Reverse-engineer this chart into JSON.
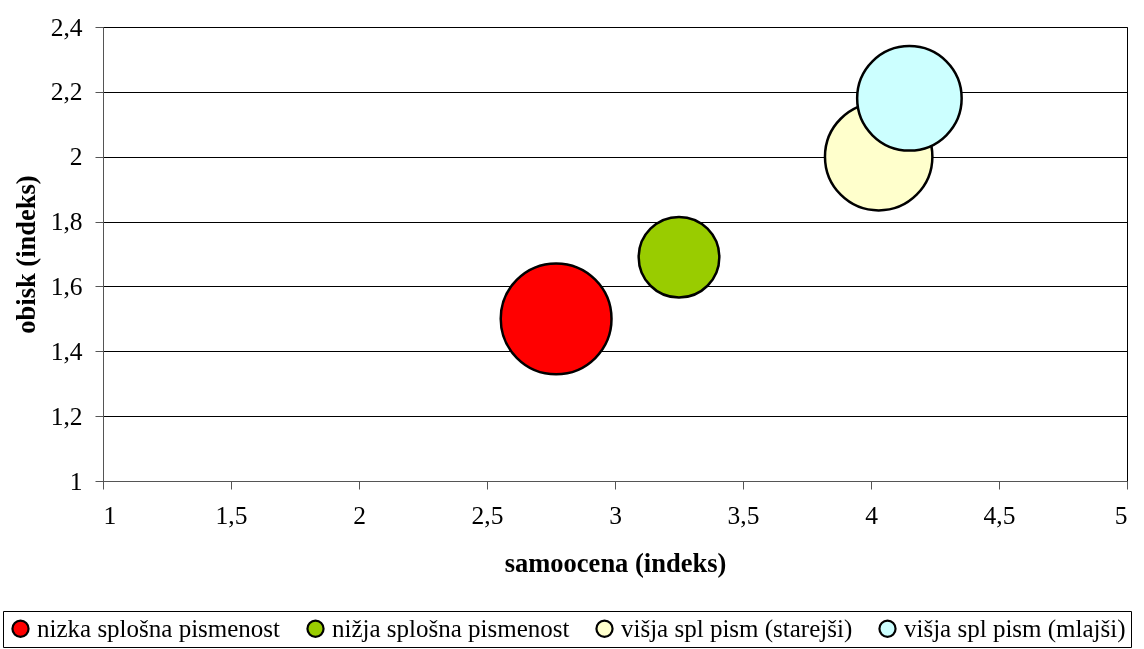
{
  "chart_data": {
    "type": "bubble",
    "xlabel": "samoocena (indeks)",
    "ylabel": "obisk (indeks)",
    "series": [
      {
        "name": "nizka splošna pismenost",
        "color": "#ff0000",
        "x": [
          2.77
        ],
        "values": [
          1.5
        ],
        "sizes": [
          1
        ]
      },
      {
        "name": "nižja splošna pismenost",
        "color": "#99cc00",
        "x": [
          3.25
        ],
        "values": [
          1.69
        ],
        "sizes": [
          0.53
        ]
      },
      {
        "name": "višja spl pism (starejši)",
        "color": "#ffffcc",
        "x": [
          4.03
        ],
        "values": [
          2.0
        ],
        "sizes": [
          0.94
        ]
      },
      {
        "name": "višja spl pism (mlajši)",
        "color": "#ccffff",
        "x": [
          4.15
        ],
        "values": [
          2.18
        ],
        "sizes": [
          0.89
        ]
      }
    ],
    "xlim": [
      1,
      5
    ],
    "xticks": [
      1,
      {
        "value": 1.5,
        "label": "1,5"
      },
      2,
      {
        "value": 2.5,
        "label": "2,5"
      },
      3,
      {
        "value": 3.5,
        "label": "3,5"
      },
      4,
      {
        "value": 4.5,
        "label": "4,5"
      },
      5
    ],
    "ylim": [
      1,
      2.4
    ],
    "yticks": [
      1,
      {
        "value": 1.2,
        "label": "1,2"
      },
      {
        "value": 1.4,
        "label": "1,4"
      },
      {
        "value": 1.6,
        "label": "1,6"
      },
      {
        "value": 1.8,
        "label": "1,8"
      },
      2,
      {
        "value": 2.2,
        "label": "2,2"
      },
      {
        "value": 2.4,
        "label": "2,4"
      }
    ],
    "grid": "y",
    "legend": "bottom"
  }
}
